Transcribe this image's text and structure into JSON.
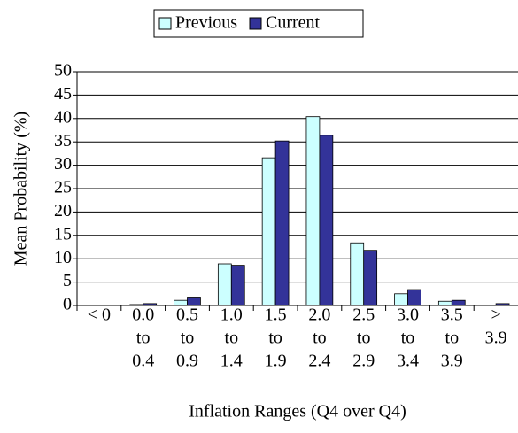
{
  "chart_data": {
    "type": "bar",
    "y_label": "Mean Probability (%)",
    "x_label": "Inflation Ranges (Q4 over Q4)",
    "categories": [
      [
        "< 0"
      ],
      [
        "0.0",
        "to",
        "0.4"
      ],
      [
        "0.5",
        "to",
        "0.9"
      ],
      [
        "1.0",
        "to",
        "1.4"
      ],
      [
        "1.5",
        "to",
        "1.9"
      ],
      [
        "2.0",
        "to",
        "2.4"
      ],
      [
        "2.5",
        "to",
        "2.9"
      ],
      [
        "3.0",
        "to",
        "3.4"
      ],
      [
        "3.5",
        "to",
        "3.9"
      ],
      [
        ">",
        "3.9"
      ]
    ],
    "series": [
      {
        "name": "Previous",
        "color": "#ccffff",
        "values": [
          0,
          0.2,
          1.1,
          8.9,
          31.6,
          40.4,
          13.4,
          2.5,
          0.9,
          0
        ]
      },
      {
        "name": "Current",
        "color": "#333399",
        "values": [
          0,
          0.4,
          1.8,
          8.6,
          35.2,
          36.4,
          11.8,
          3.4,
          1.1,
          0.4
        ]
      }
    ],
    "ylim": [
      0,
      50
    ],
    "yticks": [
      0,
      5,
      10,
      15,
      20,
      25,
      30,
      35,
      40,
      45,
      50
    ],
    "grid": true,
    "legend": "top"
  }
}
